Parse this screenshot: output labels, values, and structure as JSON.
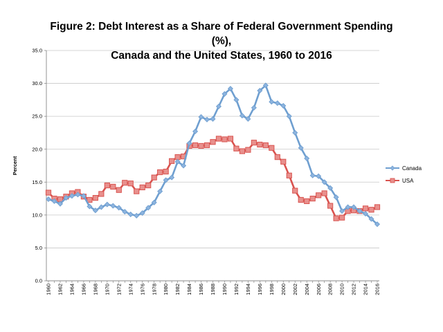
{
  "chart_data": {
    "type": "line",
    "title_line1": "Figure 2: Debt Interest as a Share of Federal Government Spending (%),",
    "title_line2": "Canada and the United States, 1960 to 2016",
    "ylabel": "Percent",
    "xlabel": "",
    "ylim": [
      0,
      35
    ],
    "yticks": [
      "0.0",
      "5.0",
      "10.0",
      "15.0",
      "20.0",
      "25.0",
      "30.0",
      "35.0"
    ],
    "grid": true,
    "legend_position": "right",
    "x": [
      1960,
      1961,
      1962,
      1963,
      1964,
      1965,
      1966,
      1967,
      1968,
      1969,
      1970,
      1971,
      1972,
      1973,
      1974,
      1975,
      1976,
      1977,
      1978,
      1979,
      1980,
      1981,
      1982,
      1983,
      1984,
      1985,
      1986,
      1987,
      1988,
      1989,
      1990,
      1991,
      1992,
      1993,
      1994,
      1995,
      1996,
      1997,
      1998,
      1999,
      2000,
      2001,
      2002,
      2003,
      2004,
      2005,
      2006,
      2007,
      2008,
      2009,
      2010,
      2011,
      2012,
      2013,
      2014,
      2015,
      2016
    ],
    "xtick_labels": [
      "1960",
      "1962",
      "1964",
      "1966",
      "1968",
      "1970",
      "1972",
      "1974",
      "1976",
      "1978",
      "1980",
      "1982",
      "1984",
      "1986",
      "1988",
      "1990",
      "1992",
      "1994",
      "1996",
      "1998",
      "2000",
      "2002",
      "2004",
      "2006",
      "2008",
      "2010",
      "2012",
      "2014",
      "2016"
    ],
    "series": [
      {
        "name": "Canada",
        "color": "#6f9fd0",
        "marker": "diamond",
        "values": [
          12.4,
          12.1,
          11.7,
          12.6,
          12.9,
          13.1,
          12.9,
          11.3,
          10.7,
          11.2,
          11.6,
          11.4,
          11.1,
          10.5,
          10.1,
          9.9,
          10.3,
          11.1,
          11.9,
          13.6,
          15.3,
          15.7,
          18.1,
          17.5,
          20.9,
          22.7,
          24.9,
          24.5,
          24.6,
          26.5,
          28.4,
          29.2,
          27.5,
          25.1,
          24.6,
          26.3,
          28.9,
          29.7,
          27.2,
          27.0,
          26.6,
          25.0,
          22.5,
          20.2,
          18.6,
          16.0,
          15.9,
          15.0,
          14.1,
          12.7,
          10.6,
          11.2,
          11.2,
          10.6,
          10.2,
          9.4,
          8.6
        ]
      },
      {
        "name": "USA",
        "color": "#d9534f",
        "marker": "square",
        "values": [
          13.4,
          12.5,
          12.4,
          12.8,
          13.3,
          13.5,
          12.8,
          12.3,
          12.6,
          13.2,
          14.5,
          14.3,
          13.8,
          14.9,
          14.8,
          13.6,
          14.2,
          14.5,
          15.7,
          16.5,
          16.6,
          18.2,
          18.8,
          18.9,
          20.5,
          20.6,
          20.5,
          20.6,
          21.1,
          21.6,
          21.5,
          21.6,
          20.1,
          19.7,
          19.9,
          21.0,
          20.7,
          20.6,
          20.2,
          18.8,
          18.1,
          16.0,
          13.7,
          12.3,
          12.1,
          12.5,
          13.0,
          13.3,
          11.4,
          9.5,
          9.6,
          10.6,
          10.7,
          10.6,
          11.0,
          10.8,
          11.2
        ]
      }
    ]
  }
}
